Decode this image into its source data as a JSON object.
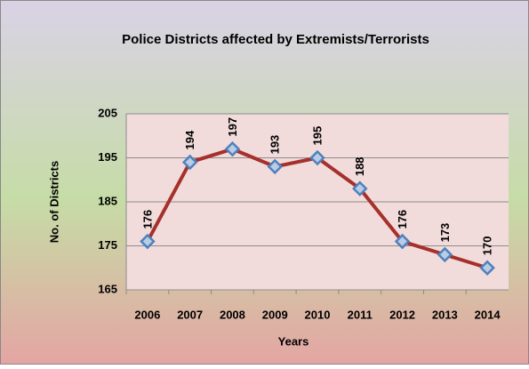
{
  "chart_data": {
    "type": "line",
    "title": "Police  Districts affected by Extremists/Terrorists",
    "x_label": "Years",
    "y_label": "No. of Districts",
    "categories": [
      "2006",
      "2007",
      "2008",
      "2009",
      "2010",
      "2011",
      "2012",
      "2013",
      "2014"
    ],
    "series": [
      {
        "name": "No. of Districts",
        "color": "#a5302c",
        "marker_color": "#4f81bd",
        "values": [
          176,
          194,
          197,
          193,
          195,
          188,
          176,
          173,
          170
        ]
      }
    ],
    "ylim": [
      165,
      205
    ],
    "yticks": [
      165,
      175,
      185,
      195,
      205
    ],
    "grid": true
  }
}
